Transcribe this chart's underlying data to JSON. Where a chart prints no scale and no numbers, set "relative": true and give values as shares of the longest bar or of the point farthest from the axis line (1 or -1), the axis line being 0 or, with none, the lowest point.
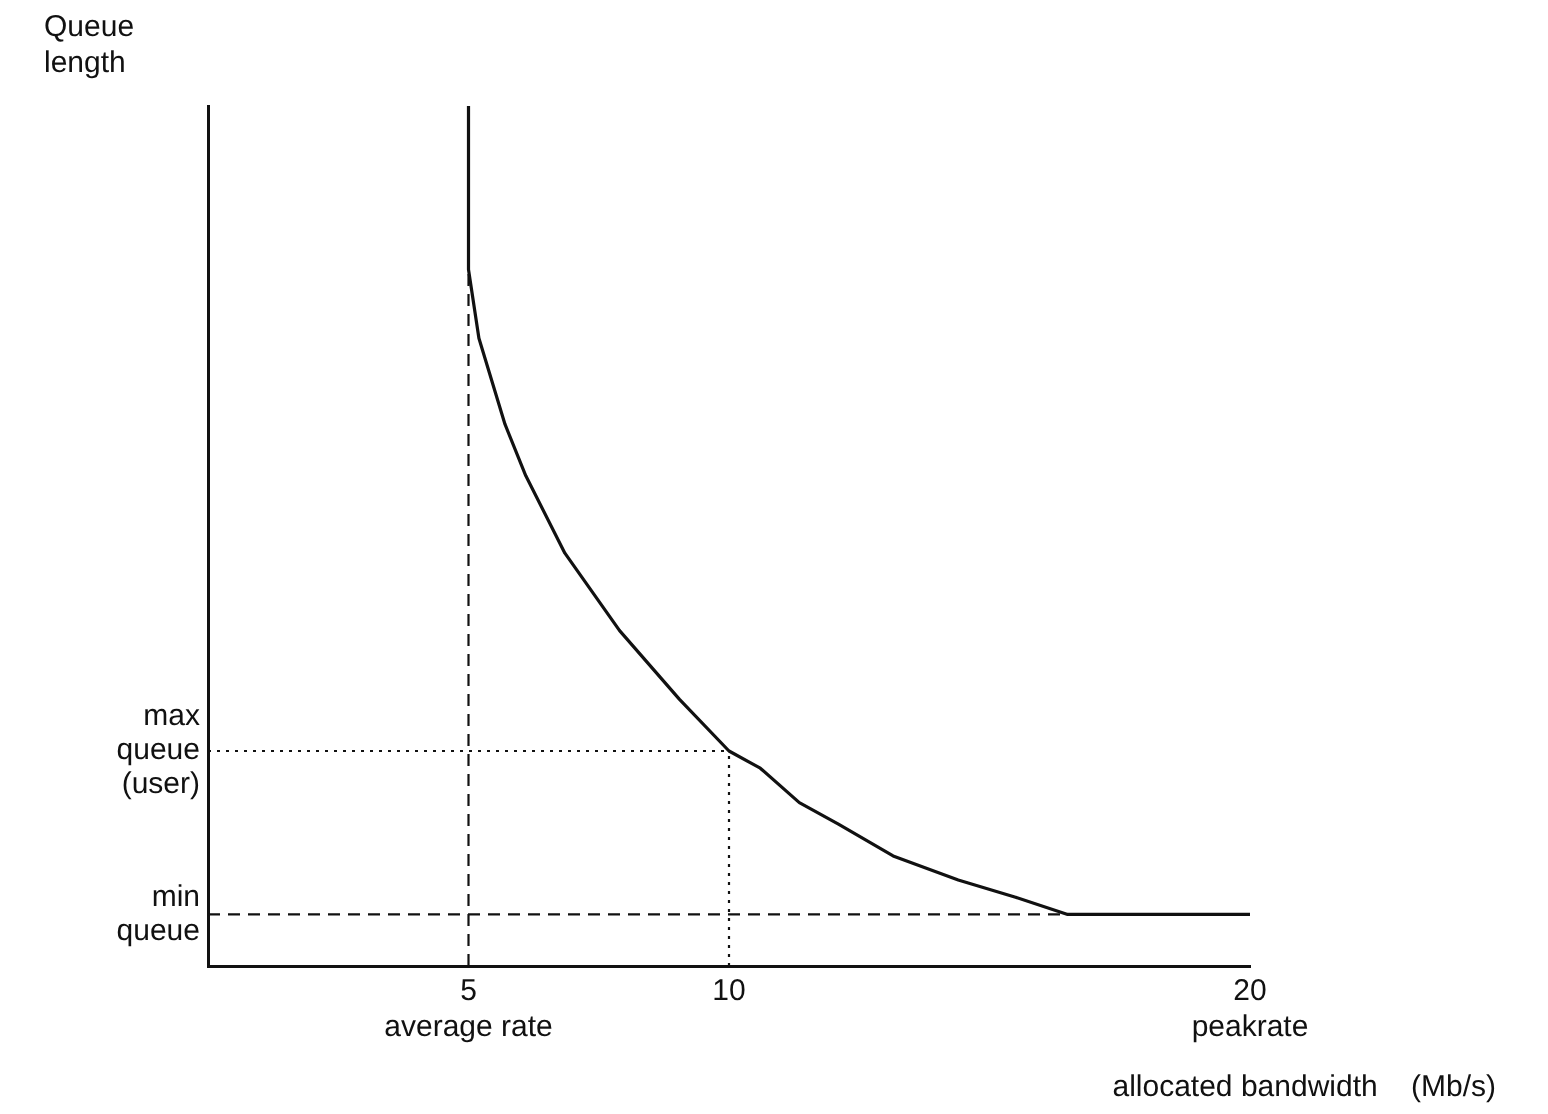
{
  "chart_data": {
    "type": "line",
    "ylabel": "Queue length",
    "xlabel": "allocated bandwidth    (Mb/s)",
    "relative": true,
    "x": [
      5,
      5,
      5.2,
      5.7,
      6.1,
      6.85,
      7.9,
      9.05,
      10,
      10.6,
      11.35,
      12.1,
      13.15,
      14.4,
      15.5,
      16.5,
      20
    ],
    "series": [
      {
        "color": "#111111",
        "values": [
          1,
          0.81,
          0.73,
          0.63,
          0.57,
          0.48,
          0.39,
          0.31,
          0.25,
          0.23,
          0.19,
          0.165,
          0.128,
          0.1,
          0.08,
          0.06,
          0.06
        ]
      }
    ],
    "xlim": [
      0,
      20
    ],
    "xticks": [
      {
        "value": 5,
        "label": "5\naverage rate"
      },
      10,
      {
        "value": 20,
        "label": "20\npeakrate"
      }
    ],
    "ref_lines": [
      {
        "axis": "x",
        "value": 5,
        "label": null,
        "line_style": "dashed",
        "color": "#111111"
      },
      {
        "axis": "x",
        "value": 10,
        "label": null,
        "line_style": "dotted",
        "color": "#111111"
      },
      {
        "axis": "y",
        "value": 0.25,
        "label": "max\nqueue\n(user)",
        "line_style": "dotted",
        "color": "#111111"
      },
      {
        "axis": "y",
        "value": 0.06,
        "label": "min\nqueue",
        "line_style": "dashed",
        "color": "#111111"
      }
    ],
    "grid": false,
    "legend": false,
    "marker": "none",
    "line_style": "solid"
  }
}
